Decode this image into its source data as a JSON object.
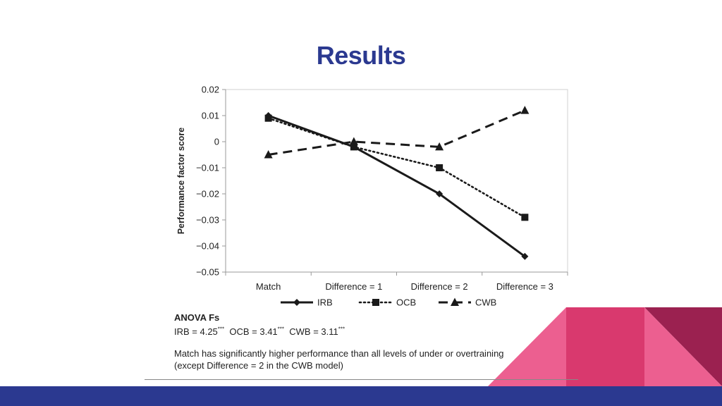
{
  "slide": {
    "title": "Results",
    "colors": {
      "title": "#2b3990",
      "bar": "#2b3990",
      "pink_light": "#ec5f90",
      "pink_dark": "#d9396e",
      "maroon": "#9b2150"
    }
  },
  "chart_data": {
    "type": "line",
    "categories": [
      "Match",
      "Difference = 1",
      "Difference = 2",
      "Difference = 3"
    ],
    "ylabel": "Performance  factor score",
    "ylim": [
      -0.05,
      0.02
    ],
    "yticks": [
      0.02,
      0.01,
      0,
      -0.01,
      -0.02,
      -0.03,
      -0.04,
      -0.05
    ],
    "ytick_labels": [
      "0.02",
      "0.01",
      "0",
      "−0.01",
      "−0.02",
      "−0.03",
      "−0.04",
      "−0.05"
    ],
    "grid": false,
    "legend": "bottom",
    "series": [
      {
        "name": "IRB",
        "values": [
          0.01,
          -0.002,
          -0.02,
          -0.044
        ],
        "marker": "diamond",
        "dash": "solid"
      },
      {
        "name": "OCB",
        "values": [
          0.009,
          -0.002,
          -0.01,
          -0.029
        ],
        "marker": "square",
        "dash": "dotted"
      },
      {
        "name": "CWB",
        "values": [
          -0.005,
          0.0,
          -0.002,
          0.012
        ],
        "marker": "triangle",
        "dash": "dashed"
      }
    ]
  },
  "notes": {
    "anova_title": "ANOVA Fs",
    "stats": [
      {
        "label": "IRB = 4.25",
        "sig": "***"
      },
      {
        "label": "OCB = 3.41",
        "sig": "***"
      },
      {
        "label": "CWB = 3.11",
        "sig": "***"
      }
    ],
    "footnote_line1": "Match has significantly higher performance than all levels of under or overtraining",
    "footnote_line2": "(except Difference = 2 in the CWB model)"
  }
}
